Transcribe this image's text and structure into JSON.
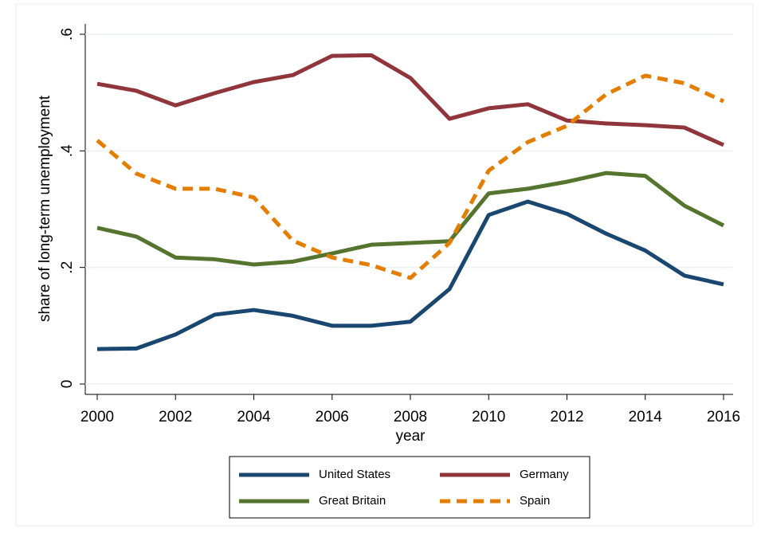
{
  "chart_data": {
    "type": "line",
    "ylabel": "share of long-term unemployment",
    "xlabel": "year",
    "x": [
      2000,
      2001,
      2002,
      2003,
      2004,
      2005,
      2006,
      2007,
      2008,
      2009,
      2010,
      2011,
      2012,
      2013,
      2014,
      2015,
      2016
    ],
    "xlim": [
      2000,
      2016
    ],
    "xticks": [
      2000,
      2002,
      2004,
      2006,
      2008,
      2010,
      2012,
      2014,
      2016
    ],
    "ylim": [
      0,
      0.6
    ],
    "yticks": [
      0,
      {
        "value": 0.2,
        "label": ".2"
      },
      {
        "value": 0.4,
        "label": ".4"
      },
      {
        "value": 0.6,
        "label": ".6"
      }
    ],
    "grid": true,
    "series": [
      {
        "name": "United States",
        "color": "#1a476f",
        "dashed": false,
        "values": [
          0.06,
          0.061,
          0.085,
          0.119,
          0.127,
          0.117,
          0.1,
          0.1,
          0.107,
          0.163,
          0.29,
          0.313,
          0.292,
          0.258,
          0.229,
          0.186,
          0.171
        ]
      },
      {
        "name": "Germany",
        "color": "#90353b",
        "dashed": false,
        "values": [
          0.515,
          0.503,
          0.478,
          0.499,
          0.518,
          0.53,
          0.563,
          0.564,
          0.525,
          0.455,
          0.473,
          0.48,
          0.452,
          0.447,
          0.444,
          0.44,
          0.41
        ]
      },
      {
        "name": "Great Britain",
        "color": "#55752f",
        "dashed": false,
        "values": [
          0.268,
          0.253,
          0.217,
          0.214,
          0.205,
          0.21,
          0.224,
          0.239,
          0.242,
          0.245,
          0.327,
          0.335,
          0.347,
          0.362,
          0.357,
          0.306,
          0.272
        ]
      },
      {
        "name": "Spain",
        "color": "#e37e00",
        "dashed": true,
        "values": [
          0.418,
          0.361,
          0.335,
          0.335,
          0.32,
          0.246,
          0.217,
          0.204,
          0.182,
          0.242,
          0.366,
          0.415,
          0.443,
          0.497,
          0.529,
          0.516,
          0.485
        ]
      }
    ]
  }
}
